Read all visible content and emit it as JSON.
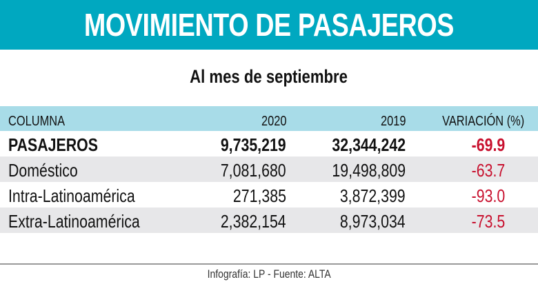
{
  "title": "MOVIMIENTO DE PASAJEROS",
  "subtitle": "Al mes de septiembre",
  "footer": "Infografía: LP - Fuente: ALTA",
  "colors": {
    "title_bar": "#00a8c0",
    "header_row": "#a8dce8",
    "negative": "#c8102e",
    "alt_row": "#e7e7e9"
  },
  "chart_data": {
    "type": "table",
    "title": "MOVIMIENTO DE PASAJEROS",
    "subtitle": "Al mes de septiembre",
    "columns": [
      "COLUMNA",
      "2020",
      "2019",
      "VARIACIÓN (%)"
    ],
    "rows": [
      [
        "PASAJEROS",
        "9,735,219",
        "32,344,242",
        "-69.9"
      ],
      [
        "Doméstico",
        "7,081,680",
        "19,498,809",
        "-63.7"
      ],
      [
        "Intra-Latinoamérica",
        "271,385",
        "3,872,399",
        "-93.0"
      ],
      [
        "Extra-Latinoamérica",
        "2,382,154",
        "8,973,034",
        "-73.5"
      ]
    ]
  }
}
